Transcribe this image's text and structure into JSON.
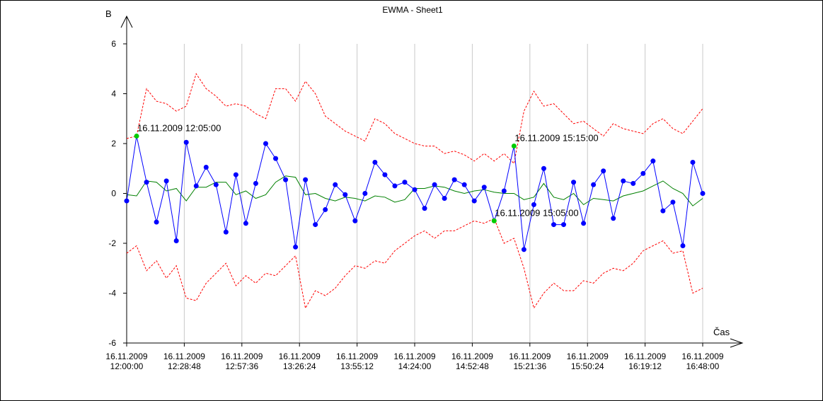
{
  "chart_data": {
    "type": "line",
    "title": "EWMA - Sheet1",
    "ylabel": "B",
    "xlabel": "Čas",
    "ylim": [
      -6,
      6
    ],
    "yticks": [
      6,
      4,
      2,
      0,
      -2,
      -4,
      -6
    ],
    "x_tick_labels": [
      [
        "16.11.2009",
        "12:00:00"
      ],
      [
        "16.11.2009",
        "12:28:48"
      ],
      [
        "16.11.2009",
        "12:57:36"
      ],
      [
        "16.11.2009",
        "13:26:24"
      ],
      [
        "16.11.2009",
        "13:55:12"
      ],
      [
        "16.11.2009",
        "14:24:00"
      ],
      [
        "16.11.2009",
        "14:52:48"
      ],
      [
        "16.11.2009",
        "15:21:36"
      ],
      [
        "16.11.2009",
        "15:50:24"
      ],
      [
        "16.11.2009",
        "16:19:12"
      ],
      [
        "16.11.2009",
        "16:48:00"
      ]
    ],
    "vertical_gridlines": true,
    "series": [
      {
        "color": "#0000ff",
        "marker": "dot",
        "values": [
          -0.3,
          2.3,
          0.45,
          -1.15,
          0.5,
          -1.9,
          2.05,
          0.3,
          1.05,
          0.35,
          -1.55,
          0.75,
          -1.2,
          0.4,
          2.0,
          1.4,
          0.55,
          -2.15,
          0.55,
          -1.25,
          -0.65,
          0.35,
          -0.05,
          -1.1,
          0.0,
          1.25,
          0.75,
          0.3,
          0.45,
          0.15,
          -0.6,
          0.35,
          -0.2,
          0.55,
          0.35,
          -0.3,
          0.25,
          -1.1,
          0.1,
          1.9,
          -2.25,
          -0.45,
          1.0,
          -1.25,
          -1.25,
          0.45,
          -1.2,
          0.35,
          0.9,
          -1.0,
          0.5,
          0.4,
          0.8,
          1.3,
          -0.7,
          -0.35,
          -2.1,
          1.25,
          0.0
        ]
      },
      {
        "color": "#008000",
        "values": [
          -0.05,
          -0.1,
          0.5,
          0.45,
          0.1,
          0.2,
          -0.3,
          0.25,
          0.25,
          0.45,
          0.45,
          -0.05,
          0.1,
          -0.2,
          -0.05,
          0.45,
          0.7,
          0.65,
          -0.05,
          0.0,
          -0.2,
          -0.3,
          -0.15,
          -0.2,
          -0.3,
          -0.1,
          -0.15,
          -0.35,
          -0.25,
          0.2,
          0.2,
          0.3,
          0.25,
          0.1,
          0.0,
          0.1,
          0.15,
          0.05,
          0.0,
          0.0,
          -0.25,
          -0.15,
          0.4,
          -0.15,
          -0.25,
          0.0,
          -0.45,
          -0.2,
          -0.25,
          -0.3,
          -0.1,
          0.0,
          0.1,
          0.3,
          0.5,
          0.2,
          0.0,
          -0.5,
          -0.2
        ]
      },
      {
        "color": "#ff0000",
        "style": "dashed",
        "values": [
          2.2,
          2.3,
          4.2,
          3.7,
          3.6,
          3.3,
          3.5,
          4.8,
          4.2,
          3.9,
          3.5,
          3.6,
          3.5,
          3.2,
          3.0,
          4.2,
          4.2,
          3.7,
          4.5,
          4.0,
          3.1,
          2.8,
          2.5,
          2.3,
          2.1,
          3.0,
          2.8,
          2.4,
          2.2,
          2.0,
          1.9,
          1.9,
          1.6,
          1.7,
          1.55,
          1.3,
          1.6,
          1.3,
          1.6,
          1.2,
          3.3,
          4.1,
          3.5,
          3.6,
          3.2,
          2.8,
          2.9,
          2.6,
          2.3,
          2.8,
          2.6,
          2.5,
          2.4,
          2.8,
          3.0,
          2.6,
          2.4,
          2.9,
          3.4
        ]
      },
      {
        "color": "#ff0000",
        "style": "dashed",
        "values": [
          -2.4,
          -2.1,
          -3.1,
          -2.7,
          -3.4,
          -2.9,
          -4.2,
          -4.3,
          -3.6,
          -3.2,
          -2.8,
          -3.7,
          -3.3,
          -3.6,
          -3.2,
          -3.3,
          -2.9,
          -2.5,
          -4.6,
          -3.9,
          -4.1,
          -3.8,
          -3.3,
          -2.9,
          -3.0,
          -2.7,
          -2.8,
          -2.3,
          -2.0,
          -1.7,
          -1.5,
          -1.8,
          -1.5,
          -1.5,
          -1.3,
          -1.1,
          -1.2,
          -1.0,
          -2.0,
          -1.8,
          -3.0,
          -4.6,
          -4.0,
          -3.6,
          -3.9,
          -3.9,
          -3.5,
          -3.6,
          -3.2,
          -3.0,
          -3.1,
          -2.8,
          -2.3,
          -2.1,
          -1.9,
          -2.4,
          -2.3,
          -4.0,
          -3.8
        ]
      }
    ],
    "highlighted_points": [
      {
        "index": 1,
        "label": "16.11.2009 12:05:00",
        "color": "#00cc00"
      },
      {
        "index": 37,
        "label": "16.11.2009 15:05:00",
        "color": "#00cc00"
      },
      {
        "index": 39,
        "label": "16.11.2009 15:15:00",
        "color": "#00cc00"
      }
    ]
  }
}
